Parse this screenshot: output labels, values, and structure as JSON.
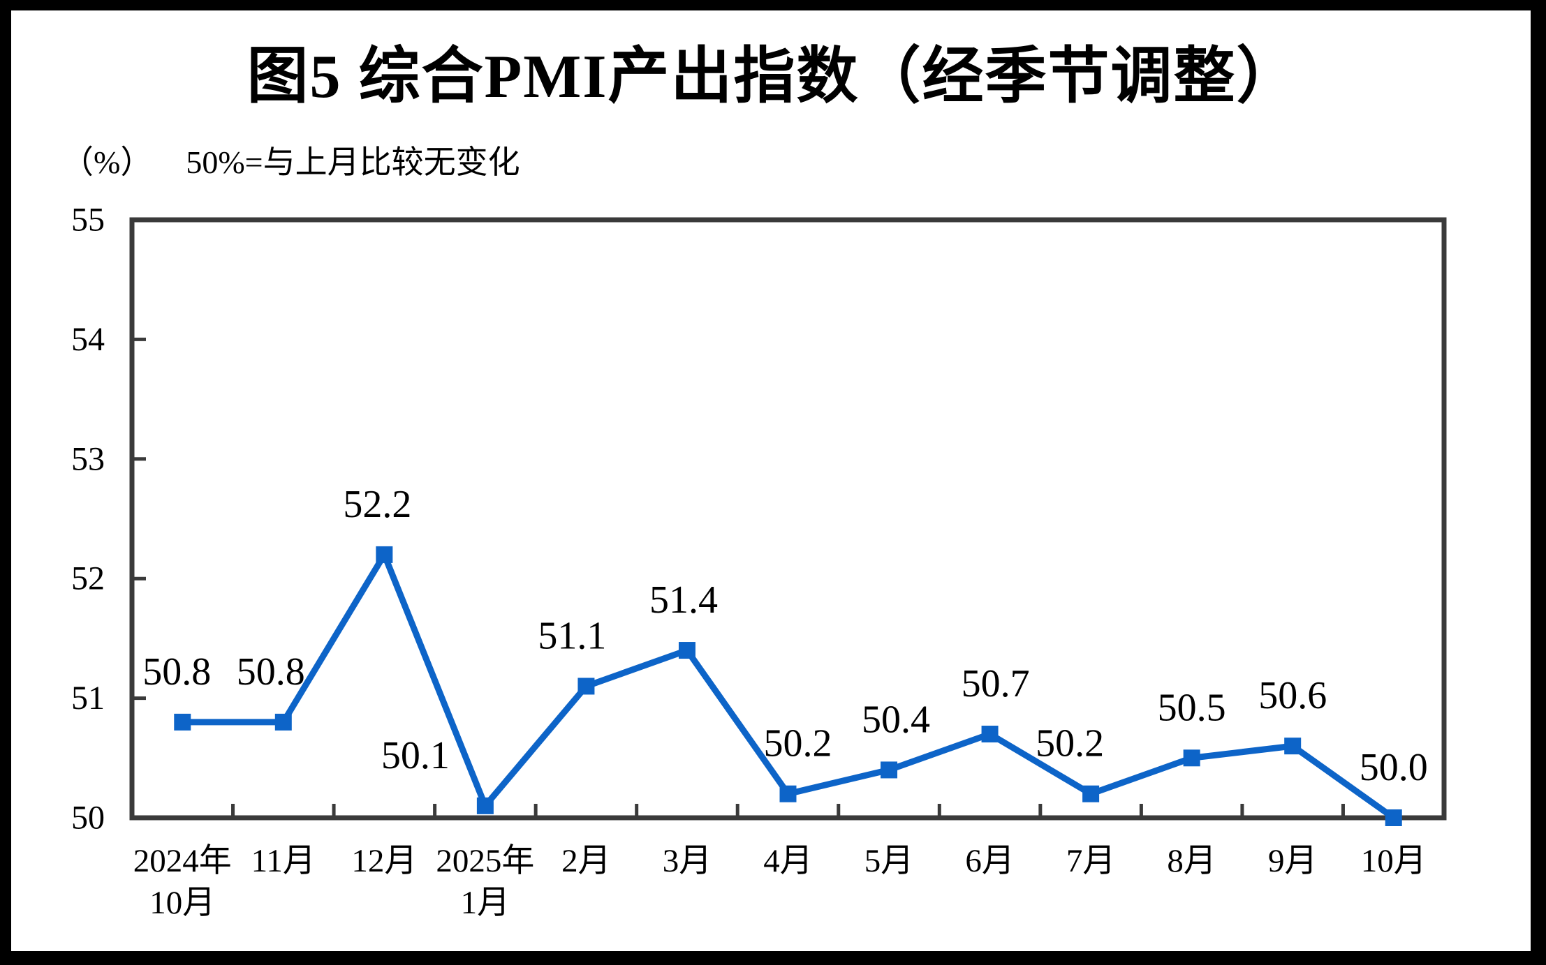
{
  "frame": {
    "background": "#000000",
    "page_background": "#ffffff"
  },
  "header": {
    "title": "图5 综合PMI产出指数（经季节调整）"
  },
  "subtitle": {
    "unit": "（%）",
    "note": "50%=与上月比较无变化"
  },
  "chart_data": {
    "type": "line",
    "title": "图5 综合PMI产出指数（经季节调整）",
    "ylabel_unit": "（%）",
    "annotation": "50%=与上月比较无变化",
    "categories": [
      [
        "2024年",
        "10月"
      ],
      [
        "11月"
      ],
      [
        "12月"
      ],
      [
        "2025年",
        "1月"
      ],
      [
        "2月"
      ],
      [
        "3月"
      ],
      [
        "4月"
      ],
      [
        "5月"
      ],
      [
        "6月"
      ],
      [
        "7月"
      ],
      [
        "8月"
      ],
      [
        "9月"
      ],
      [
        "10月"
      ]
    ],
    "values": [
      50.8,
      50.8,
      52.2,
      50.1,
      51.1,
      51.4,
      50.2,
      50.4,
      50.7,
      50.2,
      50.5,
      50.6,
      50.0
    ],
    "point_labels": [
      "50.8",
      "50.8",
      "52.2",
      "50.1",
      "51.1",
      "51.4",
      "50.2",
      "50.4",
      "50.7",
      "50.2",
      "50.5",
      "50.6",
      "50.0"
    ],
    "ylim": [
      50,
      55
    ],
    "yticks": [
      50,
      51,
      52,
      53,
      54,
      55
    ],
    "grid": false,
    "legend": null,
    "marker": "square",
    "line_color": "#0d64c8",
    "axis_color": "#3a3a3a",
    "text_color": "#000000"
  }
}
